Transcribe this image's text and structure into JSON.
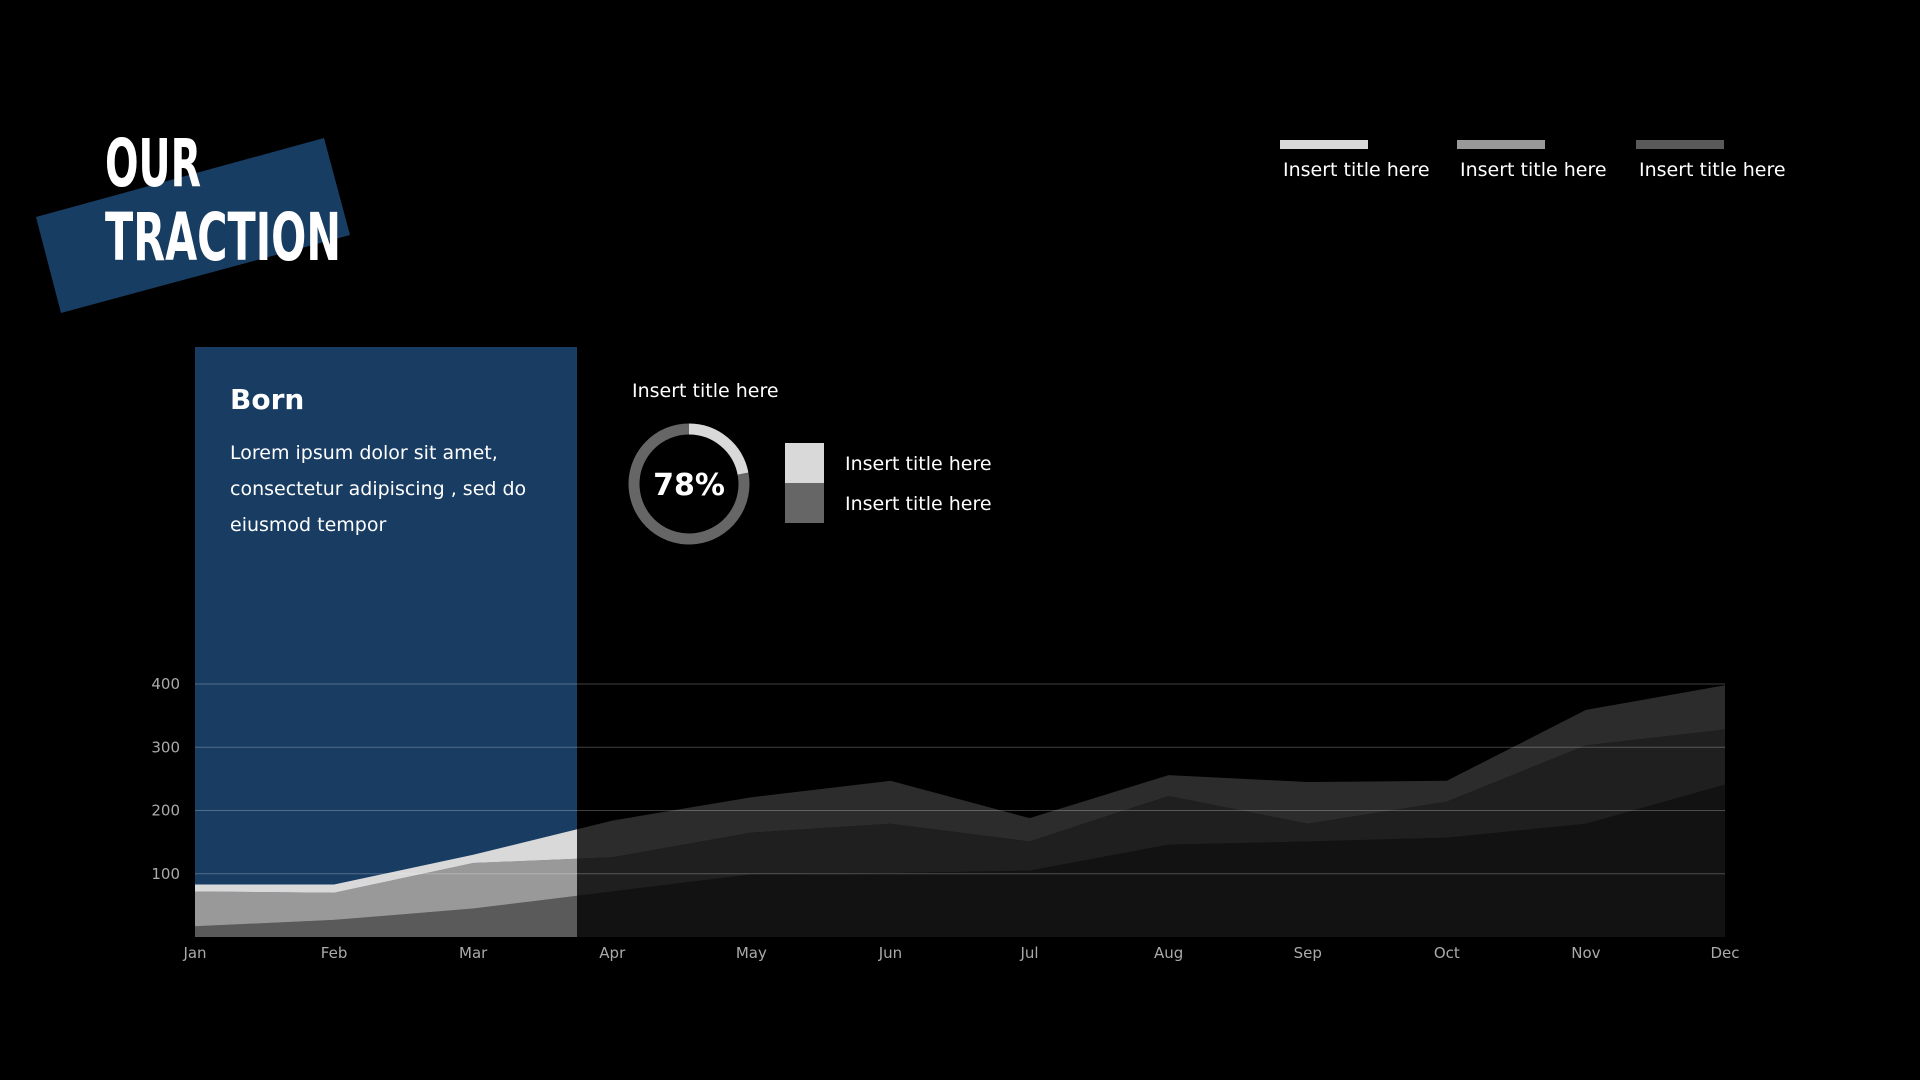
{
  "header": {
    "title_line1": "OUR",
    "title_line2": "TRACTION"
  },
  "card": {
    "heading": "Born",
    "lines": [
      "Lorem ipsum dolor sit amet,",
      "consectetur adipiscing , sed do",
      "eiusmod tempor"
    ]
  },
  "chart_data": [
    {
      "type": "area",
      "stacked": true,
      "categories": [
        "Jan",
        "Feb",
        "Mar",
        "Apr",
        "May",
        "Jun",
        "Jul",
        "Aug",
        "Sep",
        "Oct",
        "Nov",
        "Dec"
      ],
      "series": [
        {
          "name": "Insert title here",
          "color": "#5a5a5a",
          "values": [
            17,
            27,
            45,
            72,
            99,
            101,
            105,
            146,
            151,
            157,
            179,
            241
          ]
        },
        {
          "name": "Insert title here",
          "color": "#999999",
          "values": [
            55,
            43,
            72,
            54,
            66,
            78,
            46,
            77,
            28,
            57,
            124,
            87
          ]
        },
        {
          "name": "Insert title here",
          "color": "#d9d9d9",
          "values": [
            11,
            13,
            13,
            58,
            56,
            68,
            37,
            33,
            66,
            33,
            56,
            70
          ]
        }
      ],
      "ylim": [
        0,
        400
      ],
      "yticks": [
        100,
        200,
        300,
        400
      ],
      "grid": true
    },
    {
      "type": "donut",
      "title": "Insert title here",
      "categories": [
        "Insert title here",
        "Insert title here"
      ],
      "values": [
        22,
        78
      ],
      "value_labels": [
        null,
        "78%"
      ],
      "colors": [
        "#d9d9d9",
        "#666666"
      ]
    }
  ]
}
